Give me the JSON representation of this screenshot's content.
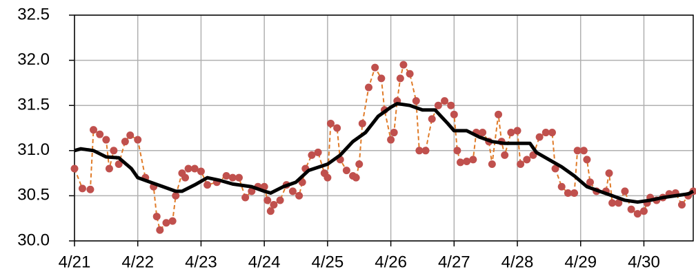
{
  "chart_data": {
    "type": "line",
    "xlim": [
      0,
      9.78
    ],
    "xticks": [
      {
        "value": 0,
        "label": "4/21"
      },
      {
        "value": 1,
        "label": "4/22"
      },
      {
        "value": 2,
        "label": "4/23"
      },
      {
        "value": 3,
        "label": "4/24"
      },
      {
        "value": 4,
        "label": "4/25"
      },
      {
        "value": 5,
        "label": "4/26"
      },
      {
        "value": 6,
        "label": "4/27"
      },
      {
        "value": 7,
        "label": "4/28"
      },
      {
        "value": 8,
        "label": "4/29"
      },
      {
        "value": 9,
        "label": "4/30"
      }
    ],
    "ylim": [
      30,
      32.5
    ],
    "yticks": [
      {
        "value": 30,
        "label": "30.0"
      },
      {
        "value": 30.5,
        "label": "30.5"
      },
      {
        "value": 31,
        "label": "31.0"
      },
      {
        "value": 31.5,
        "label": "31.5"
      },
      {
        "value": 32,
        "label": "32.0"
      },
      {
        "value": 32.5,
        "label": "32.5"
      }
    ],
    "grid": true,
    "series": [
      {
        "color": "#c0504d",
        "line_color": "#e07b28",
        "markers": true,
        "dashed": true,
        "x": [
          0,
          0.125,
          0.25,
          0.3,
          0.4,
          0.5,
          0.55,
          0.62,
          0.7,
          0.8,
          0.88,
          1.0,
          1.12,
          1.25,
          1.3,
          1.35,
          1.45,
          1.55,
          1.6,
          1.7,
          1.75,
          1.8,
          1.9,
          2.0,
          2.1,
          2.25,
          2.4,
          2.5,
          2.6,
          2.7,
          2.8,
          2.9,
          3.0,
          3.05,
          3.1,
          3.15,
          3.25,
          3.35,
          3.45,
          3.55,
          3.6,
          3.65,
          3.75,
          3.85,
          3.95,
          4.0,
          4.05,
          4.15,
          4.2,
          4.3,
          4.4,
          4.45,
          4.5,
          4.55,
          4.65,
          4.75,
          4.85,
          4.9,
          5.0,
          5.05,
          5.1,
          5.15,
          5.2,
          5.3,
          5.4,
          5.45,
          5.55,
          5.65,
          5.75,
          5.85,
          5.95,
          6.0,
          6.05,
          6.1,
          6.2,
          6.3,
          6.35,
          6.45,
          6.55,
          6.6,
          6.7,
          6.75,
          6.8,
          6.9,
          7.0,
          7.05,
          7.15,
          7.25,
          7.35,
          7.45,
          7.55,
          7.6,
          7.7,
          7.8,
          7.9,
          7.95,
          8.05,
          8.1,
          8.15,
          8.25,
          8.4,
          8.45,
          8.5,
          8.6,
          8.7,
          8.8,
          8.9,
          9.0,
          9.05,
          9.1,
          9.2,
          9.3,
          9.4,
          9.5,
          9.6,
          9.7,
          9.78
        ],
        "values": [
          30.8,
          30.58,
          30.57,
          31.23,
          31.18,
          31.12,
          30.8,
          31.0,
          30.85,
          31.1,
          31.17,
          31.12,
          30.7,
          30.6,
          30.27,
          30.12,
          30.2,
          30.22,
          30.5,
          30.75,
          30.7,
          30.8,
          30.8,
          30.77,
          30.62,
          30.65,
          30.72,
          30.7,
          30.7,
          30.48,
          30.55,
          30.6,
          30.6,
          30.45,
          30.33,
          30.4,
          30.45,
          30.62,
          30.55,
          30.5,
          30.65,
          30.8,
          30.95,
          30.98,
          30.75,
          30.7,
          31.3,
          31.25,
          30.9,
          30.78,
          30.72,
          30.7,
          30.85,
          31.3,
          31.7,
          31.92,
          31.8,
          31.45,
          31.12,
          31.2,
          31.55,
          31.8,
          31.95,
          31.85,
          31.55,
          31.0,
          31.0,
          31.35,
          31.5,
          31.55,
          31.5,
          31.4,
          31.0,
          30.87,
          30.88,
          30.9,
          31.2,
          31.2,
          31.1,
          30.85,
          31.4,
          31.1,
          30.95,
          31.2,
          31.22,
          30.85,
          30.9,
          30.95,
          31.15,
          31.2,
          31.2,
          30.8,
          30.6,
          30.53,
          30.53,
          31.0,
          31.0,
          30.9,
          30.65,
          30.55,
          30.55,
          30.75,
          30.42,
          30.42,
          30.55,
          30.35,
          30.3,
          30.33,
          30.42,
          30.48,
          30.45,
          30.48,
          30.52,
          30.53,
          30.4,
          30.5,
          30.55
        ]
      },
      {
        "color": "#000000",
        "line_color": "#000000",
        "markers": false,
        "dashed": false,
        "x": [
          0,
          0.1,
          0.3,
          0.5,
          0.7,
          0.9,
          1.0,
          1.2,
          1.4,
          1.6,
          1.7,
          1.9,
          2.1,
          2.3,
          2.5,
          2.8,
          3.0,
          3.1,
          3.3,
          3.5,
          3.7,
          4.0,
          4.2,
          4.4,
          4.6,
          4.8,
          5.0,
          5.1,
          5.3,
          5.5,
          5.7,
          5.9,
          6.0,
          6.2,
          6.4,
          6.6,
          6.8,
          7.0,
          7.2,
          7.3,
          7.5,
          7.7,
          7.9,
          8.1,
          8.3,
          8.5,
          8.7,
          8.9,
          9.1,
          9.3,
          9.5,
          9.7,
          9.78
        ],
        "values": [
          31.0,
          31.02,
          31.0,
          30.93,
          30.92,
          30.8,
          30.7,
          30.65,
          30.6,
          30.55,
          30.55,
          30.62,
          30.7,
          30.67,
          30.63,
          30.6,
          30.55,
          30.53,
          30.6,
          30.65,
          30.78,
          30.85,
          30.95,
          31.1,
          31.2,
          31.38,
          31.48,
          31.52,
          31.5,
          31.45,
          31.45,
          31.3,
          31.22,
          31.22,
          31.15,
          31.1,
          31.08,
          31.08,
          31.08,
          30.98,
          30.9,
          30.82,
          30.72,
          30.6,
          30.55,
          30.5,
          30.45,
          30.43,
          30.45,
          30.48,
          30.5,
          30.52,
          30.55
        ]
      }
    ]
  }
}
